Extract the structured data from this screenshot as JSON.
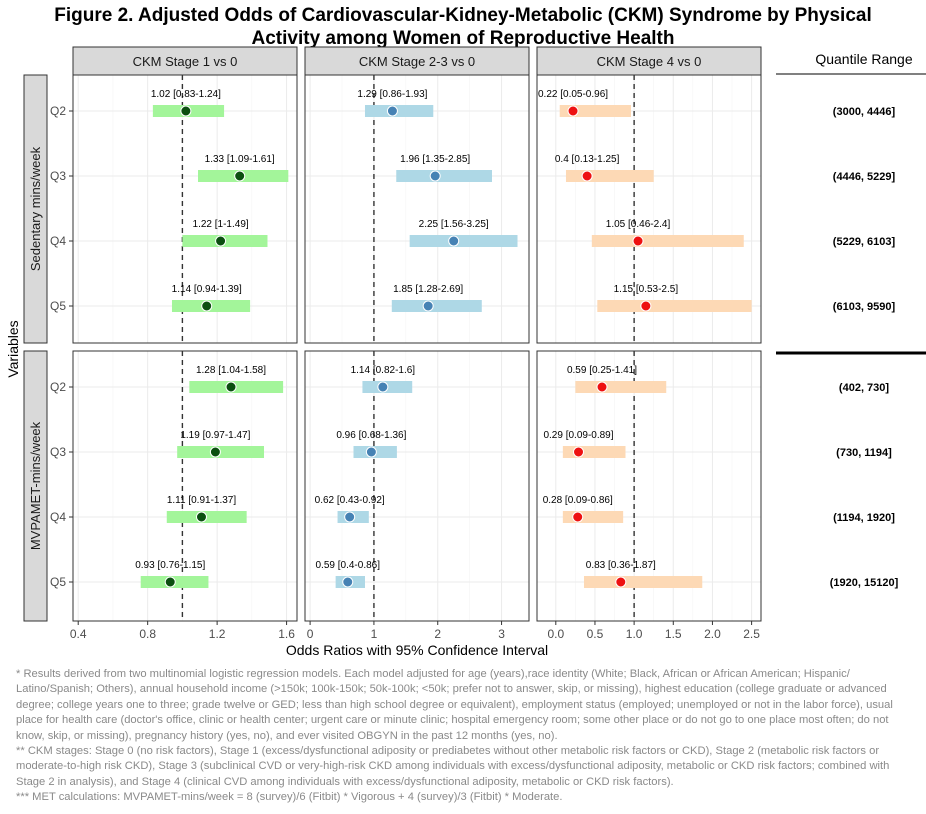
{
  "title": {
    "line1": "Figure 2.  Adjusted Odds of Cardiovascular-Kidney-Metabolic (CKM) Syndrome by Physical",
    "line2": "Activity among Women of Reproductive Health"
  },
  "chart_data": {
    "type": "forest",
    "xlabel": "Odds Ratios with 95% Confidence Interval",
    "ylabel": "Variables",
    "reference_line": 1,
    "quantile_header": "Quantile Range",
    "panels": [
      {
        "title": "CKM Stage 1 vs 0",
        "xlim": [
          0.37,
          1.66
        ],
        "ticks": [
          0.4,
          0.8,
          1.2,
          1.6
        ],
        "tick_labels": [
          "0.4",
          "0.8",
          "1.2",
          "1.6"
        ],
        "color": "#a3f59a",
        "point_color": "#0b4f10"
      },
      {
        "title": "CKM Stage 2-3 vs 0",
        "xlim": [
          -0.08,
          3.43
        ],
        "ticks": [
          0,
          1,
          2,
          3
        ],
        "tick_labels": [
          "0",
          "1",
          "2",
          "3"
        ],
        "color": "#aed8e6",
        "point_color": "#4682b4"
      },
      {
        "title": "CKM Stage 4 vs 0",
        "xlim": [
          -0.24,
          2.62
        ],
        "ticks": [
          0,
          0.5,
          1,
          1.5,
          2,
          2.5
        ],
        "tick_labels": [
          "0.0",
          "0.5",
          "1.0",
          "1.5",
          "2.0",
          "2.5"
        ],
        "color": "#fdd9b5",
        "point_color": "#ee1111"
      }
    ],
    "groups": [
      {
        "name": "Sedentary mins/week",
        "rows": [
          {
            "label": "Q2",
            "range": "(3000, 4446]",
            "estimates": [
              {
                "or": 1.02,
                "lo": 0.83,
                "hi": 1.24,
                "text": "1.02 [0.83-1.24]"
              },
              {
                "or": 1.29,
                "lo": 0.86,
                "hi": 1.93,
                "text": "1.29 [0.86-1.93]"
              },
              {
                "or": 0.22,
                "lo": 0.05,
                "hi": 0.96,
                "text": "0.22 [0.05-0.96]"
              }
            ]
          },
          {
            "label": "Q3",
            "range": "(4446, 5229]",
            "estimates": [
              {
                "or": 1.33,
                "lo": 1.09,
                "hi": 1.61,
                "text": "1.33 [1.09-1.61]"
              },
              {
                "or": 1.96,
                "lo": 1.35,
                "hi": 2.85,
                "text": "1.96 [1.35-2.85]"
              },
              {
                "or": 0.4,
                "lo": 0.13,
                "hi": 1.25,
                "text": "0.4 [0.13-1.25]"
              }
            ]
          },
          {
            "label": "Q4",
            "range": "(5229, 6103]",
            "estimates": [
              {
                "or": 1.22,
                "lo": 1.0,
                "hi": 1.49,
                "text": "1.22 [1-1.49]"
              },
              {
                "or": 2.25,
                "lo": 1.56,
                "hi": 3.25,
                "text": "2.25 [1.56-3.25]"
              },
              {
                "or": 1.05,
                "lo": 0.46,
                "hi": 2.4,
                "text": "1.05 [0.46-2.4]"
              }
            ]
          },
          {
            "label": "Q5",
            "range": "(6103, 9590]",
            "estimates": [
              {
                "or": 1.14,
                "lo": 0.94,
                "hi": 1.39,
                "text": "1.14 [0.94-1.39]"
              },
              {
                "or": 1.85,
                "lo": 1.28,
                "hi": 2.69,
                "text": "1.85 [1.28-2.69]"
              },
              {
                "or": 1.15,
                "lo": 0.53,
                "hi": 2.5,
                "text": "1.15 [0.53-2.5]"
              }
            ]
          }
        ]
      },
      {
        "name": "MVPAMET-mins/week",
        "rows": [
          {
            "label": "Q2",
            "range": "(402, 730]",
            "estimates": [
              {
                "or": 1.28,
                "lo": 1.04,
                "hi": 1.58,
                "text": "1.28 [1.04-1.58]"
              },
              {
                "or": 1.14,
                "lo": 0.82,
                "hi": 1.6,
                "text": "1.14 [0.82-1.6]"
              },
              {
                "or": 0.59,
                "lo": 0.25,
                "hi": 1.41,
                "text": "0.59 [0.25-1.41]"
              }
            ]
          },
          {
            "label": "Q3",
            "range": "(730, 1194]",
            "estimates": [
              {
                "or": 1.19,
                "lo": 0.97,
                "hi": 1.47,
                "text": "1.19 [0.97-1.47]"
              },
              {
                "or": 0.96,
                "lo": 0.68,
                "hi": 1.36,
                "text": "0.96 [0.68-1.36]"
              },
              {
                "or": 0.29,
                "lo": 0.09,
                "hi": 0.89,
                "text": "0.29 [0.09-0.89]"
              }
            ]
          },
          {
            "label": "Q4",
            "range": "(1194, 1920]",
            "estimates": [
              {
                "or": 1.11,
                "lo": 0.91,
                "hi": 1.37,
                "text": "1.11 [0.91-1.37]"
              },
              {
                "or": 0.62,
                "lo": 0.43,
                "hi": 0.92,
                "text": "0.62 [0.43-0.92]"
              },
              {
                "or": 0.28,
                "lo": 0.09,
                "hi": 0.86,
                "text": "0.28 [0.09-0.86]"
              }
            ]
          },
          {
            "label": "Q5",
            "range": "(1920, 15120]",
            "estimates": [
              {
                "or": 0.93,
                "lo": 0.76,
                "hi": 1.15,
                "text": "0.93 [0.76-1.15]"
              },
              {
                "or": 0.59,
                "lo": 0.4,
                "hi": 0.86,
                "text": "0.59 [0.4-0.86]"
              },
              {
                "or": 0.83,
                "lo": 0.36,
                "hi": 1.87,
                "text": "0.83 [0.36-1.87]"
              }
            ]
          }
        ]
      }
    ]
  },
  "footnotes": [
    "* Results derived from two multinomial logistic regression models. Each model adjusted for age (years),race identity (White; Black, African or African American; Hispanic/ Latino/Spanish; Others), annual household income (>150k; 100k-150k; 50k-100k; <50k; prefer not to answer, skip, or missing), highest education (college graduate or advanced degree; college years one to three; grade twelve or GED; less than high school degree or equivalent), employment status (employed; unemployed or not in the labor force), usual place for health care (doctor's office, clinic or health center; urgent care or minute clinic; hospital emergency room; some other place or do not go to one place most often; do not know, skip, or missing), pregnancy history (yes, no), and ever visited OBGYN in the past 12 months (yes, no).",
    "** CKM stages: Stage 0 (no risk factors), Stage 1 (excess/dysfunctional adiposity or prediabetes without other metabolic risk factors or CKD), Stage 2 (metabolic risk factors or moderate-to-high risk CKD), Stage 3 (subclinical CVD or very-high-risk CKD among individuals with excess/dysfunctional adiposity, metabolic or CKD risk factors; combined with Stage 2 in analysis), and Stage 4 (clinical CVD among individuals with excess/dysfunctional adiposity, metabolic or CKD risk factors).",
    "*** MET calculations: MVPAMET-mins/week = 8 (survey)/6 (Fitbit) * Vigorous + 4 (survey)/3 (Fitbit) * Moderate."
  ]
}
